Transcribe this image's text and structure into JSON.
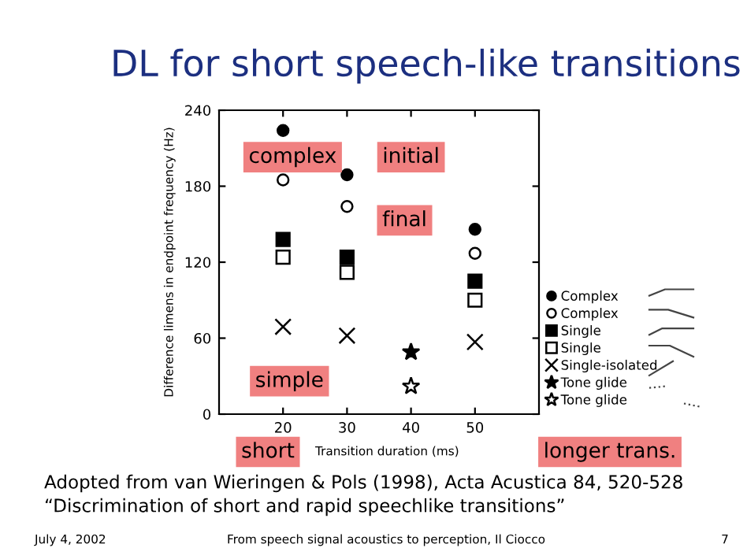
{
  "chart_data": {
    "type": "scatter",
    "title": "DL for short speech-like transitions",
    "xlabel": "Transition duration (ms)",
    "ylabel": "Difference limens in endpoint frequency (Hz)",
    "xlim": [
      10,
      60
    ],
    "xticks": [
      20,
      30,
      40,
      50
    ],
    "ylim": [
      0,
      240
    ],
    "yticks": [
      0,
      60,
      120,
      180,
      240
    ],
    "grid": false,
    "legend": "right",
    "series": [
      {
        "name": "Complex",
        "color": "#000000",
        "marker": "circle",
        "x": [
          20,
          30,
          50
        ],
        "values": [
          224,
          189,
          146
        ]
      },
      {
        "name": "Complex",
        "color": "#ffffff",
        "marker": "circle",
        "x": [
          20,
          30,
          50
        ],
        "values": [
          185,
          164,
          127
        ]
      },
      {
        "name": "Single",
        "color": "#000000",
        "marker": "square",
        "x": [
          20,
          30,
          50
        ],
        "values": [
          138,
          124,
          105
        ]
      },
      {
        "name": "Single",
        "color": "#ffffff",
        "marker": "square",
        "x": [
          20,
          30,
          50
        ],
        "values": [
          124,
          112,
          90
        ]
      },
      {
        "name": "Single-isolated",
        "color": "#000000",
        "marker": "cross",
        "x": [
          20,
          30,
          50
        ],
        "values": [
          69,
          62,
          57
        ]
      },
      {
        "name": "Tone glide",
        "color": "#000000",
        "marker": "star",
        "x": [
          40
        ],
        "values": [
          49
        ]
      },
      {
        "name": "Tone glide",
        "color": "#ffffff",
        "marker": "star",
        "x": [
          40
        ],
        "values": [
          22
        ]
      }
    ],
    "annotations": [
      "complex",
      "initial",
      "final",
      "simple",
      "short",
      "longer trans.",
      "Adopted from van Wieringen & Pols (1998), Acta Acustica 84, 520-528",
      "“Discrimination of short and rapid speechlike transitions”",
      "July 4, 2002",
      "From speech signal acoustics to perception, Il Ciocco",
      "7"
    ]
  }
}
